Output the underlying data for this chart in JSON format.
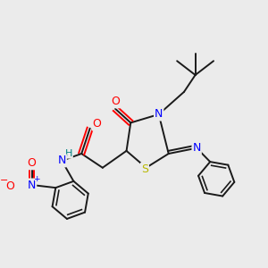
{
  "bg_color": "#ebebeb",
  "bond_color": "#1a1a1a",
  "atom_colors": {
    "N": "#0000ff",
    "O": "#ff0000",
    "S": "#b8b800",
    "H": "#008080",
    "C": "#1a1a1a"
  },
  "figsize": [
    3.0,
    3.0
  ],
  "dpi": 100
}
